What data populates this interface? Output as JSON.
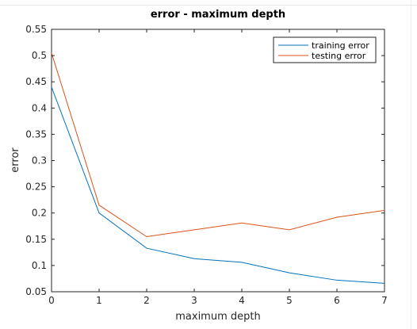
{
  "chart_data": {
    "type": "line",
    "title": "error - maximum depth",
    "xlabel": "maximum depth",
    "ylabel": "error",
    "x": [
      0,
      1,
      2,
      3,
      4,
      5,
      6,
      7
    ],
    "xlim": [
      0,
      7
    ],
    "ylim": [
      0.05,
      0.55
    ],
    "xticks": [
      "0",
      "1",
      "2",
      "3",
      "4",
      "5",
      "6",
      "7"
    ],
    "yticks": [
      {
        "value": 0.05,
        "label": "0.05"
      },
      {
        "value": 0.1,
        "label": "0.1"
      },
      {
        "value": 0.15,
        "label": "0.15"
      },
      {
        "value": 0.2,
        "label": "0.2"
      },
      {
        "value": 0.25,
        "label": "0.25"
      },
      {
        "value": 0.3,
        "label": "0.3"
      },
      {
        "value": 0.35,
        "label": "0.35"
      },
      {
        "value": 0.4,
        "label": "0.4"
      },
      {
        "value": 0.45,
        "label": "0.45"
      },
      {
        "value": 0.5,
        "label": "0.5"
      },
      {
        "value": 0.55,
        "label": "0.55"
      }
    ],
    "grid": false,
    "legend_position": "top-right",
    "series": [
      {
        "name": "training error",
        "color": "#0072BD",
        "values": [
          0.44,
          0.2,
          0.133,
          0.113,
          0.106,
          0.086,
          0.072,
          0.066
        ]
      },
      {
        "name": "testing error",
        "color": "#D95319",
        "values": [
          0.505,
          0.215,
          0.155,
          0.168,
          0.181,
          0.168,
          0.192,
          0.205
        ]
      }
    ]
  }
}
